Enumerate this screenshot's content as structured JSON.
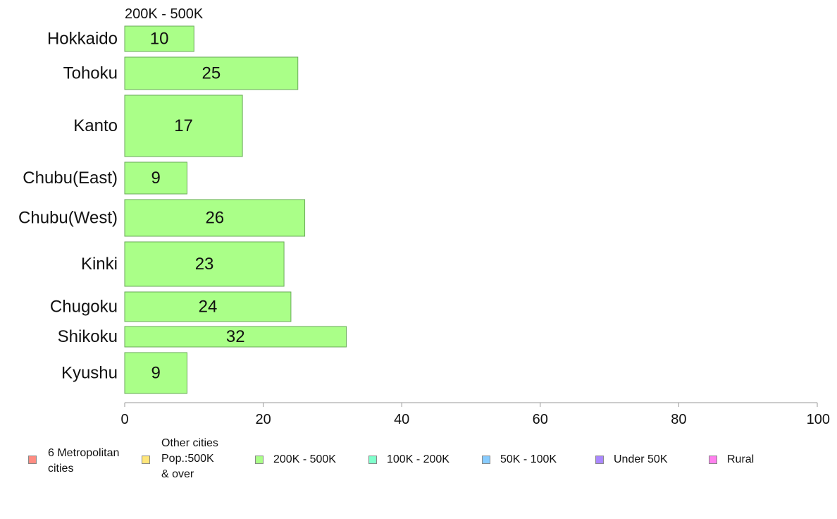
{
  "chart_data": {
    "type": "bar",
    "orientation": "horizontal",
    "title": "200K - 500K",
    "categories": [
      "Hokkaido",
      "Tohoku",
      "Kanto",
      "Chubu(East)",
      "Chubu(West)",
      "Kinki",
      "Chugoku",
      "Shikoku",
      "Kyushu"
    ],
    "values": [
      10,
      25,
      17,
      9,
      26,
      23,
      24,
      32,
      9
    ],
    "value_labels": [
      "10",
      "25",
      "17",
      "9",
      "26",
      "23",
      "24",
      "32",
      "9"
    ],
    "xlim": [
      0,
      100
    ],
    "xticks": [
      "0",
      "20",
      "40",
      "60",
      "80",
      "100"
    ],
    "bar_color": "#aaff88",
    "bar_border_color": "#6aaa5a",
    "grid": false,
    "legend_position": "bottom"
  },
  "legend": {
    "items": [
      {
        "label": "6 Metropolitan\ncities",
        "color": "#ff8c82"
      },
      {
        "label": "Other cities\nPop.:500K\n & over",
        "color": "#ffe67a"
      },
      {
        "label": "200K - 500K",
        "color": "#aaff88"
      },
      {
        "label": "100K - 200K",
        "color": "#80ffcc"
      },
      {
        "label": "50K - 100K",
        "color": "#88ccff"
      },
      {
        "label": "Under 50K",
        "color": "#aa88ff"
      },
      {
        "label": "Rural",
        "color": "#ff80ee"
      }
    ]
  }
}
